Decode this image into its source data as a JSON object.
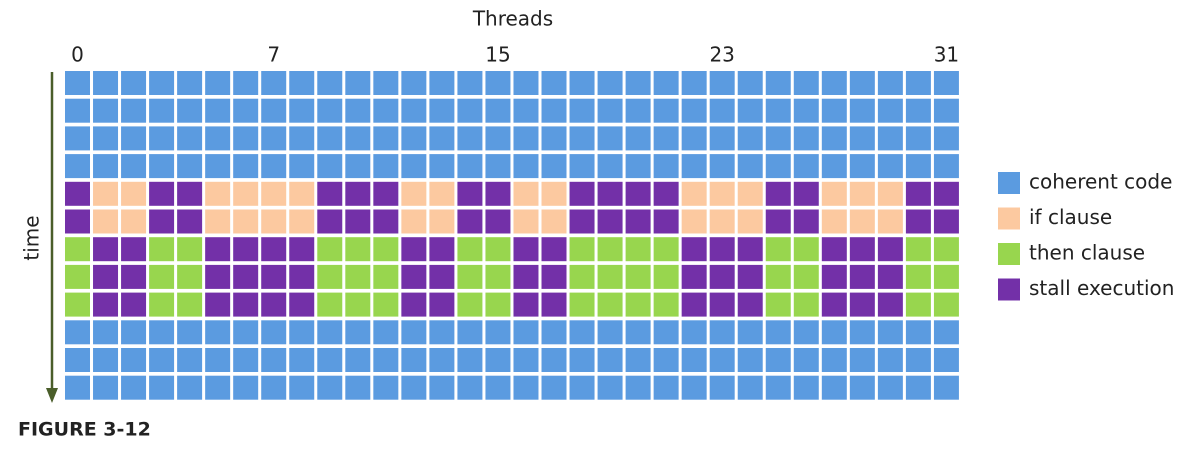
{
  "header": {
    "title": "Threads"
  },
  "axis": {
    "labels": [
      "0",
      "7",
      "15",
      "23",
      "31"
    ],
    "time_label": "time"
  },
  "legend": {
    "items": [
      "coherent code",
      "if clause",
      "then clause",
      "stall execution"
    ]
  },
  "caption": "FIGURE 3-12"
}
